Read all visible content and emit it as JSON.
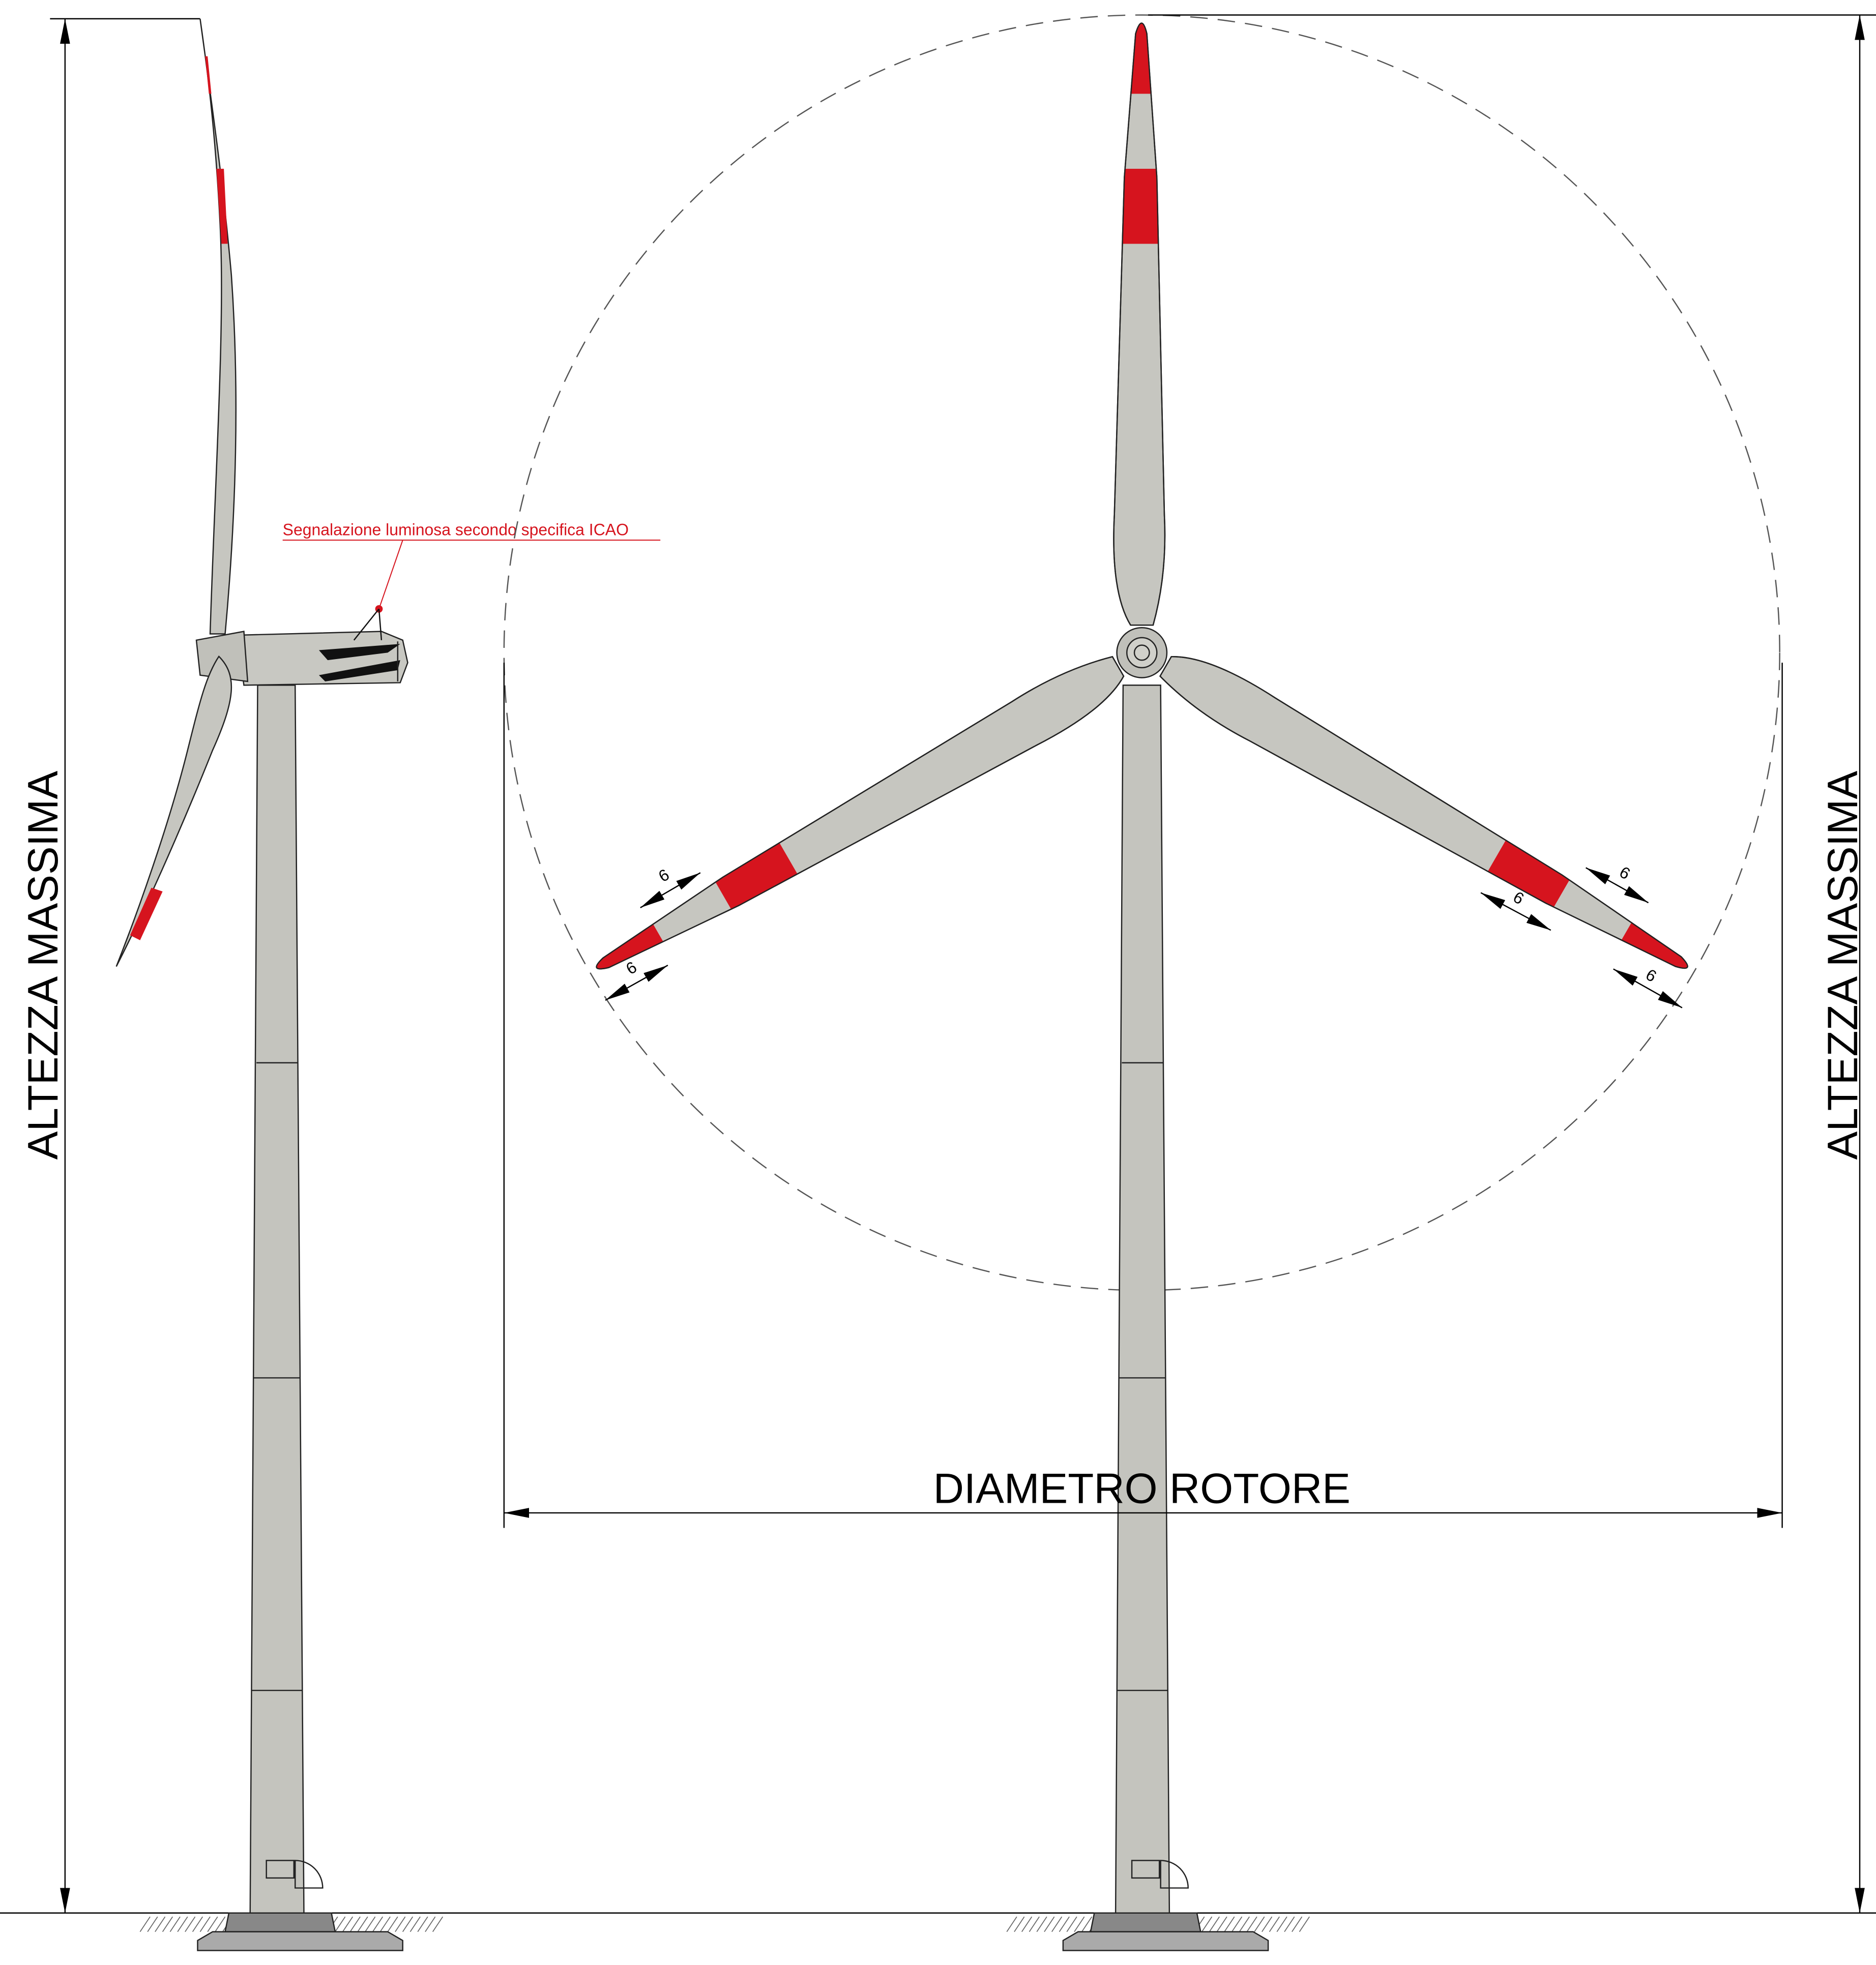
{
  "labels": {
    "height_left": "ALTEZZA MASSIMA",
    "height_right": "ALTEZZA MASSIMA",
    "rotor_diameter": "DIAMETRO ROTORE",
    "icao_note": "Segnalazione luminosa secondo specifica ICAO"
  },
  "blade_marks": [
    6,
    6,
    6,
    6,
    6
  ]
}
